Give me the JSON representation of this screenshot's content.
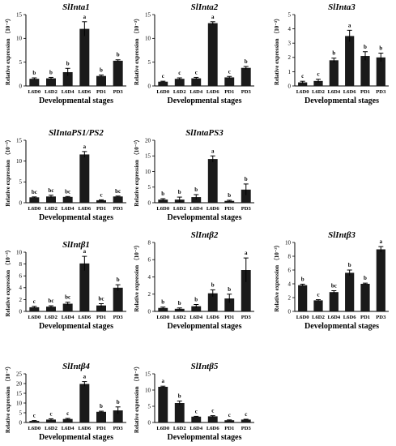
{
  "chart_data": [
    {
      "type": "bar",
      "title": "SlInta1",
      "xlabel": "Developmental stages",
      "ylabel": "Relative expression （10⁻³）",
      "categories": [
        "L6D0",
        "L6D2",
        "L6D4",
        "L6D6",
        "PD1",
        "PD3"
      ],
      "ylim": [
        0,
        15
      ],
      "yticks": [
        0,
        5,
        10,
        15
      ],
      "values": [
        1.5,
        1.6,
        2.9,
        12.0,
        2.1,
        5.3
      ],
      "errors": [
        0.2,
        0.2,
        0.8,
        1.5,
        0.2,
        0.2
      ],
      "letters": [
        "b",
        "b",
        "b",
        "a",
        "b",
        "b"
      ]
    },
    {
      "type": "bar",
      "title": "SlInta2",
      "xlabel": "Developmental stages",
      "ylabel": "Relative expression （10⁻³）",
      "categories": [
        "L6D0",
        "L6D2",
        "L6D4",
        "L6D6",
        "PD1",
        "PD3"
      ],
      "ylim": [
        0,
        15
      ],
      "yticks": [
        0,
        5,
        10,
        15
      ],
      "values": [
        0.9,
        1.5,
        1.6,
        13.2,
        1.8,
        3.8
      ],
      "errors": [
        0.1,
        0.2,
        0.2,
        0.3,
        0.2,
        0.3
      ],
      "letters": [
        "c",
        "c",
        "c",
        "a",
        "c",
        "b"
      ]
    },
    {
      "type": "bar",
      "title": "SlInta3",
      "xlabel": "Developmental stages",
      "ylabel": "Relative expression （10⁻³）",
      "categories": [
        "L6D0",
        "L6D2",
        "L6D4",
        "L6D6",
        "PD1",
        "PD3"
      ],
      "ylim": [
        0,
        5
      ],
      "yticks": [
        0,
        1,
        2,
        3,
        4,
        5
      ],
      "values": [
        0.25,
        0.35,
        1.8,
        3.5,
        2.1,
        2.0
      ],
      "errors": [
        0.08,
        0.12,
        0.15,
        0.4,
        0.3,
        0.3
      ],
      "letters": [
        "c",
        "c",
        "b",
        "a",
        "b",
        "b"
      ]
    },
    {
      "type": "bar",
      "title": "SlIntaPS1/PS2",
      "xlabel": "Developmental stages",
      "ylabel": "Relative expression （10⁻³）",
      "categories": [
        "L6D0",
        "L6D2",
        "L6D4",
        "L6D6",
        "PD1",
        "PD3"
      ],
      "ylim": [
        0,
        15
      ],
      "yticks": [
        0,
        5,
        10,
        15
      ],
      "values": [
        1.3,
        1.5,
        1.4,
        11.6,
        0.6,
        1.5
      ],
      "errors": [
        0.1,
        0.3,
        0.1,
        0.7,
        0.1,
        0.1
      ],
      "letters": [
        "bc",
        "bc",
        "bc",
        "a",
        "c",
        "bc"
      ]
    },
    {
      "type": "bar",
      "title": "SlIntaPS3",
      "xlabel": "Developmental stages",
      "ylabel": "Relative expression （10⁻³）",
      "categories": [
        "L6D0",
        "L6D2",
        "L6D4",
        "L6D6",
        "PD1",
        "PD3"
      ],
      "ylim": [
        0,
        20
      ],
      "yticks": [
        0,
        5,
        10,
        15,
        20
      ],
      "values": [
        1.0,
        1.0,
        1.8,
        14.0,
        0.6,
        4.2
      ],
      "errors": [
        0.3,
        0.8,
        0.8,
        1.0,
        0.2,
        1.8
      ],
      "letters": [
        "b",
        "b",
        "b",
        "a",
        "b",
        "b"
      ]
    },
    {
      "type": "bar",
      "title": "SlIntβ1",
      "xlabel": "Developmental stages",
      "ylabel": "Relative expression （10⁻³）",
      "categories": [
        "L6D0",
        "L6D2",
        "L6D4",
        "L6D6",
        "PD1",
        "PD3"
      ],
      "ylim": [
        0,
        10
      ],
      "yticks": [
        0,
        2,
        4,
        6,
        8,
        10
      ],
      "values": [
        0.7,
        0.8,
        1.3,
        8.1,
        1.0,
        4.0
      ],
      "errors": [
        0.15,
        0.15,
        0.25,
        1.2,
        0.3,
        0.5
      ],
      "letters": [
        "c",
        "bc",
        "bc",
        "a",
        "bc",
        "b"
      ]
    },
    {
      "type": "bar",
      "title": "SlIntβ2",
      "xlabel": "Developmental stages",
      "ylabel": "Relative expression （10⁻³）",
      "categories": [
        "L6D0",
        "L6D2",
        "L6D4",
        "L6D6",
        "PD1",
        "PD3"
      ],
      "ylim": [
        0,
        8
      ],
      "yticks": [
        0,
        2,
        4,
        6,
        8
      ],
      "values": [
        0.4,
        0.3,
        0.6,
        2.1,
        1.5,
        4.8
      ],
      "errors": [
        0.1,
        0.1,
        0.2,
        0.4,
        0.5,
        1.4
      ],
      "letters": [
        "b",
        "b",
        "b",
        "b",
        "b",
        "a"
      ]
    },
    {
      "type": "bar",
      "title": "SlIntβ3",
      "xlabel": "Developmental stages",
      "ylabel": "Relative expression （10⁻³）",
      "categories": [
        "L6D0",
        "L6D2",
        "L6D4",
        "L6D6",
        "PD1",
        "PD3"
      ],
      "ylim": [
        0,
        10
      ],
      "yticks": [
        0,
        2,
        4,
        6,
        8,
        10
      ],
      "values": [
        3.8,
        1.6,
        2.8,
        5.6,
        4.0,
        9.0
      ],
      "errors": [
        0.15,
        0.1,
        0.2,
        0.4,
        0.1,
        0.4
      ],
      "letters": [
        "b",
        "c",
        "bc",
        "b",
        "b",
        "a"
      ]
    },
    {
      "type": "bar",
      "title": "SlIntβ4",
      "xlabel": "Developmental stages",
      "ylabel": "Relative expression （10⁻³）",
      "categories": [
        "L6D0",
        "L6D2",
        "L6D4",
        "L6D6",
        "PD1",
        "PD3"
      ],
      "ylim": [
        0,
        25
      ],
      "yticks": [
        0,
        5,
        10,
        15,
        20,
        25
      ],
      "values": [
        0.8,
        1.5,
        1.8,
        19.8,
        5.5,
        6.2
      ],
      "errors": [
        0.2,
        0.4,
        0.3,
        1.2,
        0.3,
        1.8
      ],
      "letters": [
        "c",
        "c",
        "c",
        "a",
        "b",
        "b"
      ]
    },
    {
      "type": "bar",
      "title": "SlIntβ5",
      "xlabel": "Developmental stages",
      "ylabel": "Relative expression （10⁻³）",
      "categories": [
        "L6D0",
        "L6D2",
        "L6D4",
        "L6D6",
        "PD1",
        "PD3"
      ],
      "ylim": [
        0,
        15
      ],
      "yticks": [
        0,
        5,
        10,
        15
      ],
      "values": [
        11.0,
        6.0,
        1.8,
        1.9,
        0.7,
        0.9
      ],
      "errors": [
        0.2,
        0.6,
        0.1,
        0.2,
        0.1,
        0.1
      ],
      "letters": [
        "a",
        "b",
        "c",
        "c",
        "c",
        "c"
      ]
    }
  ]
}
